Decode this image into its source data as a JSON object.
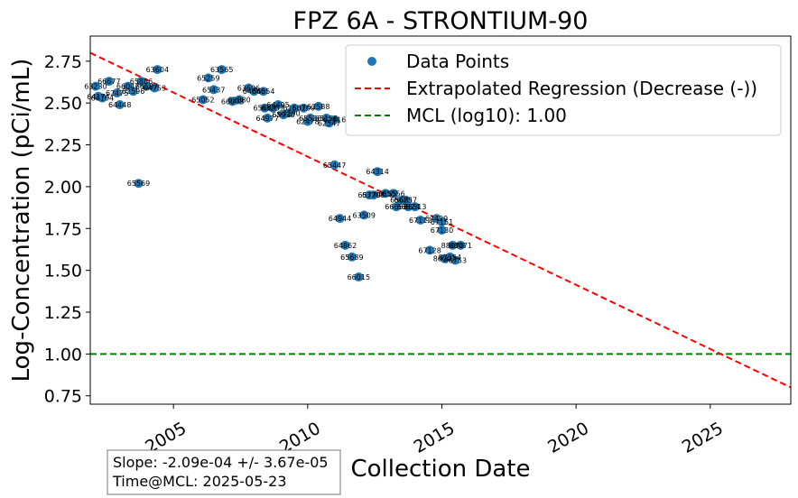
{
  "chart_data": {
    "type": "scatter",
    "title": "FPZ  6A - STRONTIUM-90",
    "xlabel": "Collection Date",
    "ylabel": "Log-Concentration (pCi/mL)",
    "xlim": [
      2001.9,
      2028.0
    ],
    "ylim": [
      0.7,
      2.9
    ],
    "x_ticks": [
      2005,
      2010,
      2015,
      2020,
      2025
    ],
    "x_tick_labels": [
      "2005",
      "2010",
      "2015",
      "2020",
      "2025"
    ],
    "y_ticks": [
      0.75,
      1.0,
      1.25,
      1.5,
      1.75,
      2.0,
      2.25,
      2.5,
      2.75
    ],
    "y_tick_labels": [
      "0.75",
      "1.00",
      "1.25",
      "1.50",
      "1.75",
      "2.00",
      "2.25",
      "2.50",
      "2.75"
    ],
    "legend": {
      "placement": "top-right",
      "entries": [
        {
          "label": "Data Points",
          "color": "#1f77b4",
          "marker": "circle"
        },
        {
          "label": "Extrapolated Regression (Decrease (-))",
          "color": "#ff0000",
          "style": "dashed"
        },
        {
          "label": "MCL (log10): 1.00",
          "color": "#008000",
          "style": "dashed"
        }
      ]
    },
    "series": [
      {
        "name": "Data Points",
        "color": "#1f77b4",
        "points": [
          {
            "x": 2002.1,
            "y": 2.6,
            "label": "63230"
          },
          {
            "x": 2002.2,
            "y": 2.54,
            "label": "64174"
          },
          {
            "x": 2002.35,
            "y": 2.53,
            "label": "64104"
          },
          {
            "x": 2002.6,
            "y": 2.63,
            "label": "66677"
          },
          {
            "x": 2002.9,
            "y": 2.56,
            "label": "62475"
          },
          {
            "x": 2003.0,
            "y": 2.49,
            "label": "64448"
          },
          {
            "x": 2003.3,
            "y": 2.6,
            "label": "66047"
          },
          {
            "x": 2003.5,
            "y": 2.57,
            "label": "62596"
          },
          {
            "x": 2003.7,
            "y": 2.02,
            "label": "65569"
          },
          {
            "x": 2003.8,
            "y": 2.63,
            "label": "65886"
          },
          {
            "x": 2004.0,
            "y": 2.6,
            "label": "66587"
          },
          {
            "x": 2004.3,
            "y": 2.59,
            "label": "64753"
          },
          {
            "x": 2004.4,
            "y": 2.7,
            "label": "63604"
          },
          {
            "x": 2006.1,
            "y": 2.52,
            "label": "65052"
          },
          {
            "x": 2006.3,
            "y": 2.65,
            "label": "65259"
          },
          {
            "x": 2006.5,
            "y": 2.58,
            "label": "65437"
          },
          {
            "x": 2006.8,
            "y": 2.7,
            "label": "63565"
          },
          {
            "x": 2007.2,
            "y": 2.51,
            "label": "66093"
          },
          {
            "x": 2007.45,
            "y": 2.52,
            "label": "62880"
          },
          {
            "x": 2007.8,
            "y": 2.59,
            "label": "63606"
          },
          {
            "x": 2008.0,
            "y": 2.57,
            "label": "64040"
          },
          {
            "x": 2008.35,
            "y": 2.57,
            "label": "66554"
          },
          {
            "x": 2008.4,
            "y": 2.47,
            "label": "65669"
          },
          {
            "x": 2008.5,
            "y": 2.41,
            "label": "64977"
          },
          {
            "x": 2008.7,
            "y": 2.47,
            "label": "63257"
          },
          {
            "x": 2008.9,
            "y": 2.49,
            "label": "64495"
          },
          {
            "x": 2009.1,
            "y": 2.43,
            "label": "65930"
          },
          {
            "x": 2009.3,
            "y": 2.44,
            "label": "63290"
          },
          {
            "x": 2009.5,
            "y": 2.47,
            "label": "61601"
          },
          {
            "x": 2009.85,
            "y": 2.47,
            "label": "66700"
          },
          {
            "x": 2010.0,
            "y": 2.39,
            "label": "62478"
          },
          {
            "x": 2010.1,
            "y": 2.41,
            "label": "65536"
          },
          {
            "x": 2010.4,
            "y": 2.48,
            "label": "62588"
          },
          {
            "x": 2010.7,
            "y": 2.41,
            "label": "65156"
          },
          {
            "x": 2010.8,
            "y": 2.38,
            "label": "62547"
          },
          {
            "x": 2011.0,
            "y": 2.4,
            "label": "62816"
          },
          {
            "x": 2011.0,
            "y": 2.13,
            "label": "65447"
          },
          {
            "x": 2011.2,
            "y": 1.81,
            "label": "64944"
          },
          {
            "x": 2011.4,
            "y": 1.65,
            "label": "64862"
          },
          {
            "x": 2011.65,
            "y": 1.58,
            "label": "65689"
          },
          {
            "x": 2011.9,
            "y": 1.46,
            "label": "66015"
          },
          {
            "x": 2012.1,
            "y": 1.83,
            "label": "63509"
          },
          {
            "x": 2012.3,
            "y": 1.95,
            "label": "65720"
          },
          {
            "x": 2012.45,
            "y": 1.95,
            "label": "63798"
          },
          {
            "x": 2012.6,
            "y": 2.09,
            "label": "64314"
          },
          {
            "x": 2012.9,
            "y": 1.96,
            "label": "66155"
          },
          {
            "x": 2013.2,
            "y": 1.96,
            "label": "65556"
          },
          {
            "x": 2013.3,
            "y": 1.88,
            "label": "66652"
          },
          {
            "x": 2013.5,
            "y": 1.92,
            "label": "65681"
          },
          {
            "x": 2013.65,
            "y": 1.92,
            "label": "66257"
          },
          {
            "x": 2013.75,
            "y": 1.88,
            "label": "66824"
          },
          {
            "x": 2014.0,
            "y": 1.88,
            "label": "66513"
          },
          {
            "x": 2014.2,
            "y": 1.8,
            "label": "67112"
          },
          {
            "x": 2014.55,
            "y": 1.62,
            "label": "67128"
          },
          {
            "x": 2014.8,
            "y": 1.81,
            "label": "67429"
          },
          {
            "x": 2015.0,
            "y": 1.79,
            "label": "67151"
          },
          {
            "x": 2015.0,
            "y": 1.74,
            "label": "67130"
          },
          {
            "x": 2015.1,
            "y": 1.57,
            "label": "86007"
          },
          {
            "x": 2015.3,
            "y": 1.58,
            "label": "87354"
          },
          {
            "x": 2015.4,
            "y": 1.65,
            "label": "88070"
          },
          {
            "x": 2015.5,
            "y": 1.56,
            "label": "86753"
          },
          {
            "x": 2015.7,
            "y": 1.65,
            "label": "88071"
          }
        ]
      }
    ],
    "regression": {
      "name": "Extrapolated Regression (Decrease (-))",
      "color": "#ff0000",
      "x": [
        2001.9,
        2028.0
      ],
      "y": [
        2.8,
        0.8
      ]
    },
    "mcl": {
      "name": "MCL (log10): 1.00",
      "color": "#008000",
      "y": 1.0
    },
    "grid": false
  },
  "stats_box": {
    "line1": "Slope: -2.09e-04 +/- 3.67e-05",
    "line2": "Time@MCL: 2025-05-23"
  }
}
